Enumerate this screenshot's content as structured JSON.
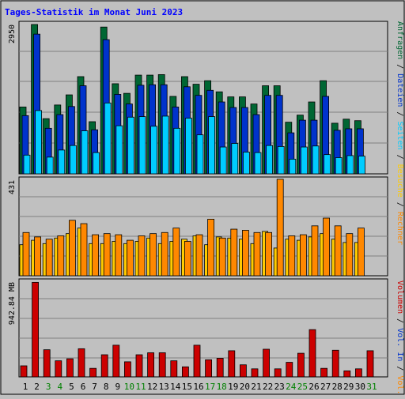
{
  "title": "Tages-Statistik im Monat Juni 2023",
  "colors": {
    "background": "#c0c0c0",
    "title": "#0000ff",
    "anfragen": "#006633",
    "dateien": "#0033cc",
    "seiten": "#00ccff",
    "besuche": "#ffcc00",
    "rechner": "#ff8800",
    "volumen": "#cc0000",
    "weekend_label": "#008000",
    "weekday_label": "#000000"
  },
  "right_labels": {
    "top": [
      {
        "text": "Anfragen",
        "color": "#006633"
      },
      {
        "text": " / ",
        "color": "#000000"
      },
      {
        "text": "Dateien",
        "color": "#0033cc"
      },
      {
        "text": " / ",
        "color": "#000000"
      },
      {
        "text": "Seiten",
        "color": "#00ccff"
      },
      {
        "text": " / ",
        "color": "#000000"
      },
      {
        "text": "Besuche",
        "color": "#ffcc00"
      },
      {
        "text": " / ",
        "color": "#000000"
      },
      {
        "text": "Rechner",
        "color": "#ff8800"
      }
    ],
    "bottom": [
      {
        "text": "Volumen",
        "color": "#cc0000"
      },
      {
        "text": " / ",
        "color": "#000000"
      },
      {
        "text": "Vol. In",
        "color": "#0033cc"
      },
      {
        "text": " / ",
        "color": "#000000"
      },
      {
        "text": "Vol. Out",
        "color": "#ff8800"
      }
    ]
  },
  "chart_data": [
    {
      "type": "bar",
      "panel": "hits",
      "y_max_label": "2950",
      "ylim": [
        0,
        2950
      ],
      "grid": true,
      "categories": [
        "1",
        "2",
        "3",
        "4",
        "5",
        "6",
        "7",
        "8",
        "9",
        "10",
        "11",
        "12",
        "13",
        "14",
        "15",
        "16",
        "17",
        "18",
        "19",
        "20",
        "21",
        "22",
        "23",
        "24",
        "25",
        "26",
        "27",
        "28",
        "29",
        "30",
        "31"
      ],
      "weekend": [
        3,
        4,
        10,
        11,
        17,
        18,
        24,
        25,
        31
      ],
      "series": [
        {
          "name": "Anfragen",
          "values": [
            1320,
            2950,
            1090,
            1360,
            1560,
            1920,
            1030,
            2900,
            1780,
            1590,
            1950,
            1950,
            1960,
            1530,
            1920,
            1770,
            1840,
            1620,
            1520,
            1520,
            1380,
            1740,
            1740,
            1020,
            1160,
            1420,
            1840,
            1000,
            1080,
            1050,
            0
          ]
        },
        {
          "name": "Dateien",
          "values": [
            1150,
            2760,
            900,
            1170,
            1330,
            1740,
            870,
            2650,
            1570,
            1380,
            1750,
            1760,
            1760,
            1320,
            1720,
            1550,
            1650,
            1420,
            1310,
            1310,
            1170,
            1550,
            1550,
            810,
            1060,
            1060,
            1530,
            860,
            890,
            890,
            0
          ]
        },
        {
          "name": "Seiten",
          "values": [
            370,
            1250,
            330,
            470,
            560,
            850,
            420,
            1400,
            950,
            1120,
            1130,
            940,
            1140,
            900,
            1100,
            770,
            1130,
            530,
            600,
            430,
            420,
            560,
            540,
            290,
            530,
            550,
            380,
            320,
            360,
            350,
            0
          ]
        }
      ]
    },
    {
      "type": "bar",
      "panel": "visits",
      "y_max_label": "431",
      "ylim": [
        0,
        431
      ],
      "grid": true,
      "categories": [
        "1",
        "2",
        "3",
        "4",
        "5",
        "6",
        "7",
        "8",
        "9",
        "10",
        "11",
        "12",
        "13",
        "14",
        "15",
        "16",
        "17",
        "18",
        "19",
        "20",
        "21",
        "22",
        "23",
        "24",
        "25",
        "26",
        "27",
        "28",
        "29",
        "30",
        "31"
      ],
      "series": [
        {
          "name": "Besuche",
          "values": [
            140,
            160,
            145,
            170,
            190,
            215,
            145,
            145,
            155,
            145,
            155,
            170,
            145,
            155,
            165,
            180,
            140,
            175,
            170,
            165,
            145,
            200,
            125,
            165,
            160,
            175,
            190,
            165,
            150,
            150,
            0
          ]
        },
        {
          "name": "Rechner",
          "values": [
            195,
            175,
            165,
            180,
            250,
            235,
            185,
            190,
            185,
            160,
            180,
            190,
            195,
            215,
            155,
            185,
            255,
            170,
            210,
            205,
            195,
            195,
            435,
            180,
            185,
            225,
            260,
            225,
            190,
            215,
            0
          ]
        }
      ]
    },
    {
      "type": "bar",
      "panel": "volume",
      "y_max_label": "942.84 MB",
      "ylim": [
        0,
        942.84
      ],
      "grid": true,
      "categories": [
        "1",
        "2",
        "3",
        "4",
        "5",
        "6",
        "7",
        "8",
        "9",
        "10",
        "11",
        "12",
        "13",
        "14",
        "15",
        "16",
        "17",
        "18",
        "19",
        "20",
        "21",
        "22",
        "23",
        "24",
        "25",
        "26",
        "27",
        "28",
        "29",
        "30",
        "31"
      ],
      "series": [
        {
          "name": "Volumen",
          "values": [
            110,
            940,
            270,
            160,
            180,
            280,
            85,
            220,
            315,
            150,
            220,
            240,
            240,
            160,
            100,
            315,
            170,
            185,
            260,
            120,
            80,
            275,
            80,
            145,
            235,
            470,
            85,
            265,
            60,
            80,
            260
          ]
        }
      ]
    }
  ]
}
